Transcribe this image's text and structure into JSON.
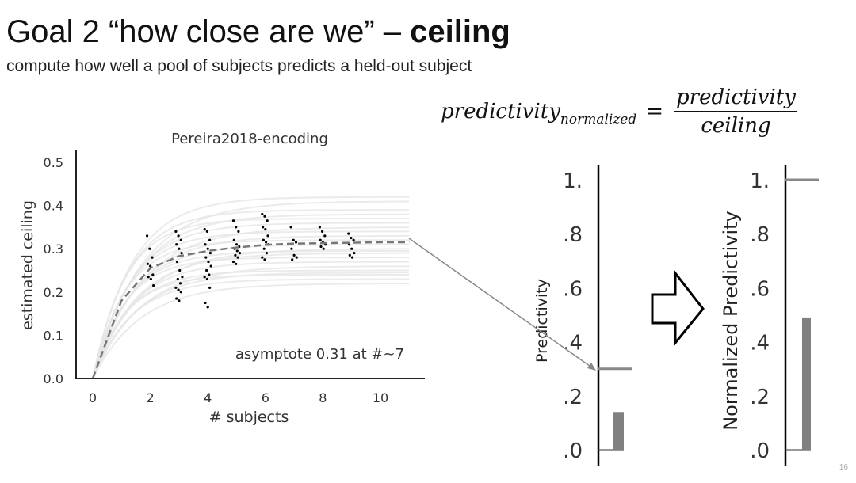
{
  "slide": {
    "title_prefix": "Goal 2 “how close are we” – ",
    "title_bold": "ceiling",
    "subtitle": "compute how well a pool of subjects predicts a held-out subject",
    "formula": {
      "lhs": "predictivity",
      "lhs_sub": "normalized",
      "eq": "=",
      "numerator": "predictivity",
      "denominator": "ceiling"
    },
    "page_number": "16"
  },
  "chart_data": [
    {
      "type": "line",
      "title": "Pereira2018-encoding",
      "xlabel": "# subjects",
      "ylabel": "estimated ceiling",
      "xlim": [
        -1,
        12
      ],
      "ylim": [
        0,
        0.5
      ],
      "xticks": [
        0,
        2,
        4,
        6,
        8,
        10
      ],
      "yticks": [
        0.0,
        0.1,
        0.2,
        0.3,
        0.4,
        0.5
      ],
      "ytick_labels": [
        "0.0",
        "0.1",
        "0.2",
        "0.3",
        "0.4",
        "0.5"
      ],
      "annotation": "asymptote 0.31 at #~7",
      "mean_fit": {
        "x": [
          0,
          1,
          2,
          3,
          4,
          5,
          6,
          7,
          8,
          9,
          10,
          11
        ],
        "y": [
          0,
          0.18,
          0.255,
          0.283,
          0.295,
          0.303,
          0.309,
          0.312,
          0.313,
          0.314,
          0.315,
          0.315
        ]
      },
      "bootstrap_asymptotes": [
        0.22,
        0.23,
        0.24,
        0.245,
        0.25,
        0.26,
        0.27,
        0.28,
        0.29,
        0.295,
        0.3,
        0.31,
        0.32,
        0.33,
        0.34,
        0.35,
        0.36,
        0.37,
        0.38,
        0.39,
        0.41,
        0.42
      ],
      "scatter": {
        "2": [
          0.33,
          0.3,
          0.28,
          0.265,
          0.26,
          0.24,
          0.235,
          0.23,
          0.215
        ],
        "3": [
          0.34,
          0.33,
          0.32,
          0.31,
          0.3,
          0.29,
          0.27,
          0.25,
          0.235,
          0.23,
          0.22,
          0.21,
          0.205,
          0.2,
          0.185,
          0.18
        ],
        "4": [
          0.345,
          0.34,
          0.32,
          0.31,
          0.3,
          0.29,
          0.28,
          0.27,
          0.26,
          0.25,
          0.24,
          0.235,
          0.23,
          0.21,
          0.175,
          0.165
        ],
        "5": [
          0.365,
          0.35,
          0.34,
          0.32,
          0.31,
          0.305,
          0.3,
          0.295,
          0.29,
          0.285,
          0.28,
          0.27,
          0.265
        ],
        "6": [
          0.38,
          0.375,
          0.365,
          0.35,
          0.345,
          0.33,
          0.32,
          0.315,
          0.31,
          0.3,
          0.29,
          0.28,
          0.275
        ],
        "7": [
          0.35,
          0.32,
          0.315,
          0.3,
          0.285,
          0.28,
          0.275
        ],
        "8": [
          0.35,
          0.34,
          0.33,
          0.32,
          0.315,
          0.31,
          0.305,
          0.3
        ],
        "9": [
          0.335,
          0.325,
          0.32,
          0.31,
          0.3,
          0.29,
          0.285,
          0.28
        ]
      },
      "colors": {
        "fit": "#777777",
        "points": "#000000",
        "bootstrap": "#e6e6e6"
      }
    },
    {
      "type": "bar",
      "ylabel": "Predictivity",
      "ylim": [
        0,
        1
      ],
      "ytick_labels": [
        "1.",
        ".8",
        ".6",
        ".4",
        ".2",
        ".0"
      ],
      "yticks": [
        1,
        0.8,
        0.6,
        0.4,
        0.2,
        0
      ],
      "values": [
        0.14
      ],
      "ceiling_line": 0.3
    },
    {
      "type": "bar",
      "ylabel": "Normalized  Predictivity",
      "ylim": [
        0,
        1
      ],
      "ytick_labels": [
        "1.",
        ".8",
        ".6",
        ".4",
        ".2",
        ".0"
      ],
      "yticks": [
        1,
        0.8,
        0.6,
        0.4,
        0.2,
        0
      ],
      "values": [
        0.49
      ],
      "ceiling_line": 1.0
    }
  ]
}
